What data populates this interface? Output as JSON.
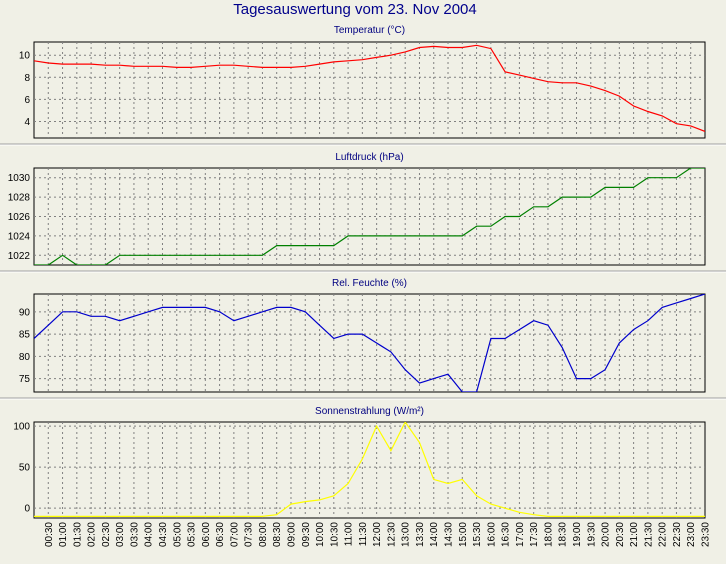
{
  "page": {
    "title": "Tagesauswertung vom 23. Nov 2004"
  },
  "chart_data": [
    {
      "type": "line",
      "title": "Temperatur (°C)",
      "ylim": [
        2.5,
        11.2
      ],
      "yticks": [
        4,
        6,
        8,
        10
      ],
      "grid": true,
      "color": "#ff0000",
      "x": [
        0,
        0.5,
        1,
        1.5,
        2,
        2.5,
        3,
        3.5,
        4,
        4.5,
        5,
        5.5,
        6,
        6.5,
        7,
        7.5,
        8,
        8.5,
        9,
        9.5,
        10,
        10.5,
        11,
        11.5,
        12,
        12.5,
        13,
        13.5,
        14,
        14.5,
        15,
        15.5,
        16,
        16.5,
        17,
        17.5,
        18,
        18.5,
        19,
        19.5,
        20,
        20.5,
        21,
        21.5,
        22,
        22.5,
        23,
        23.5
      ],
      "values": [
        9.5,
        9.3,
        9.2,
        9.2,
        9.2,
        9.1,
        9.1,
        9.0,
        9.0,
        9.0,
        8.9,
        8.9,
        9.0,
        9.1,
        9.1,
        9.0,
        8.9,
        8.9,
        8.9,
        9.0,
        9.2,
        9.4,
        9.5,
        9.6,
        9.8,
        10.0,
        10.3,
        10.7,
        10.8,
        10.7,
        10.7,
        10.9,
        10.6,
        8.5,
        8.2,
        7.9,
        7.6,
        7.5,
        7.5,
        7.2,
        6.8,
        6.3,
        5.4,
        4.9,
        4.5,
        3.8,
        3.6,
        3.1
      ]
    },
    {
      "type": "line",
      "title": "Luftdruck (hPa)",
      "ylim": [
        1021,
        1031
      ],
      "yticks": [
        1022,
        1024,
        1026,
        1028,
        1030
      ],
      "grid": true,
      "color": "#008000",
      "x": [
        0,
        0.5,
        1,
        1.5,
        2,
        2.5,
        3,
        3.5,
        4,
        4.5,
        5,
        5.5,
        6,
        6.5,
        7,
        7.5,
        8,
        8.5,
        9,
        9.5,
        10,
        10.5,
        11,
        11.5,
        12,
        12.5,
        13,
        13.5,
        14,
        14.5,
        15,
        15.5,
        16,
        16.5,
        17,
        17.5,
        18,
        18.5,
        19,
        19.5,
        20,
        20.5,
        21,
        21.5,
        22,
        22.5,
        23,
        23.5
      ],
      "values": [
        1021,
        1021,
        1022,
        1021,
        1021,
        1021,
        1022,
        1022,
        1022,
        1022,
        1022,
        1022,
        1022,
        1022,
        1022,
        1022,
        1022,
        1023,
        1023,
        1023,
        1023,
        1023,
        1024,
        1024,
        1024,
        1024,
        1024,
        1024,
        1024,
        1024,
        1024,
        1025,
        1025,
        1026,
        1026,
        1027,
        1027,
        1028,
        1028,
        1028,
        1029,
        1029,
        1029,
        1030,
        1030,
        1030,
        1031,
        1031
      ]
    },
    {
      "type": "line",
      "title": "Rel. Feuchte (%)",
      "ylim": [
        72,
        94
      ],
      "yticks": [
        75,
        80,
        85,
        90
      ],
      "grid": true,
      "color": "#0000cc",
      "x": [
        0,
        0.5,
        1,
        1.5,
        2,
        2.5,
        3,
        3.5,
        4,
        4.5,
        5,
        5.5,
        6,
        6.5,
        7,
        7.5,
        8,
        8.5,
        9,
        9.5,
        10,
        10.5,
        11,
        11.5,
        12,
        12.5,
        13,
        13.5,
        14,
        14.5,
        15,
        15.5,
        16,
        16.5,
        17,
        17.5,
        18,
        18.5,
        19,
        19.5,
        20,
        20.5,
        21,
        21.5,
        22,
        22.5,
        23,
        23.5
      ],
      "values": [
        84,
        87,
        90,
        90,
        89,
        89,
        88,
        89,
        90,
        91,
        91,
        91,
        91,
        90,
        88,
        89,
        90,
        91,
        91,
        90,
        87,
        84,
        85,
        85,
        83,
        81,
        77,
        74,
        75,
        76,
        72,
        72,
        84,
        84,
        86,
        88,
        87,
        82,
        75,
        75,
        77,
        83,
        86,
        88,
        91,
        92,
        93,
        94
      ]
    },
    {
      "type": "line",
      "title": "Sonnenstrahlung (W/m²)",
      "ylim": [
        -12,
        105
      ],
      "yticks": [
        0,
        50,
        100
      ],
      "grid": true,
      "color": "#ffff00",
      "x": [
        0,
        0.5,
        1,
        1.5,
        2,
        2.5,
        3,
        3.5,
        4,
        4.5,
        5,
        5.5,
        6,
        6.5,
        7,
        7.5,
        8,
        8.5,
        9,
        9.5,
        10,
        10.5,
        11,
        11.5,
        12,
        12.5,
        13,
        13.5,
        14,
        14.5,
        15,
        15.5,
        16,
        16.5,
        17,
        17.5,
        18,
        18.5,
        19,
        19.5,
        20,
        20.5,
        21,
        21.5,
        22,
        22.5,
        23,
        23.5
      ],
      "values": [
        -10,
        -10,
        -10,
        -10,
        -10,
        -10,
        -10,
        -10,
        -10,
        -10,
        -10,
        -10,
        -10,
        -10,
        -10,
        -10,
        -10,
        -8,
        5,
        8,
        10,
        15,
        30,
        60,
        100,
        70,
        105,
        80,
        35,
        30,
        35,
        15,
        5,
        0,
        -5,
        -8,
        -10,
        -10,
        -10,
        -10,
        -10,
        -10,
        -10,
        -10,
        -10,
        -10,
        -10,
        -10
      ]
    }
  ],
  "x_ticks": [
    "00:30",
    "01:00",
    "01:30",
    "02:00",
    "02:30",
    "03:00",
    "03:30",
    "04:00",
    "04:30",
    "05:00",
    "05:30",
    "06:00",
    "06:30",
    "07:00",
    "07:30",
    "08:00",
    "08:30",
    "09:00",
    "09:30",
    "10:00",
    "10:30",
    "11:00",
    "11:30",
    "12:00",
    "12:30",
    "13:00",
    "13:30",
    "14:00",
    "14:30",
    "15:00",
    "15:30",
    "16:00",
    "16:30",
    "17:00",
    "17:30",
    "18:00",
    "18:30",
    "19:00",
    "19:30",
    "20:00",
    "20:30",
    "21:00",
    "21:30",
    "22:00",
    "22:30",
    "23:00",
    "23:30"
  ]
}
